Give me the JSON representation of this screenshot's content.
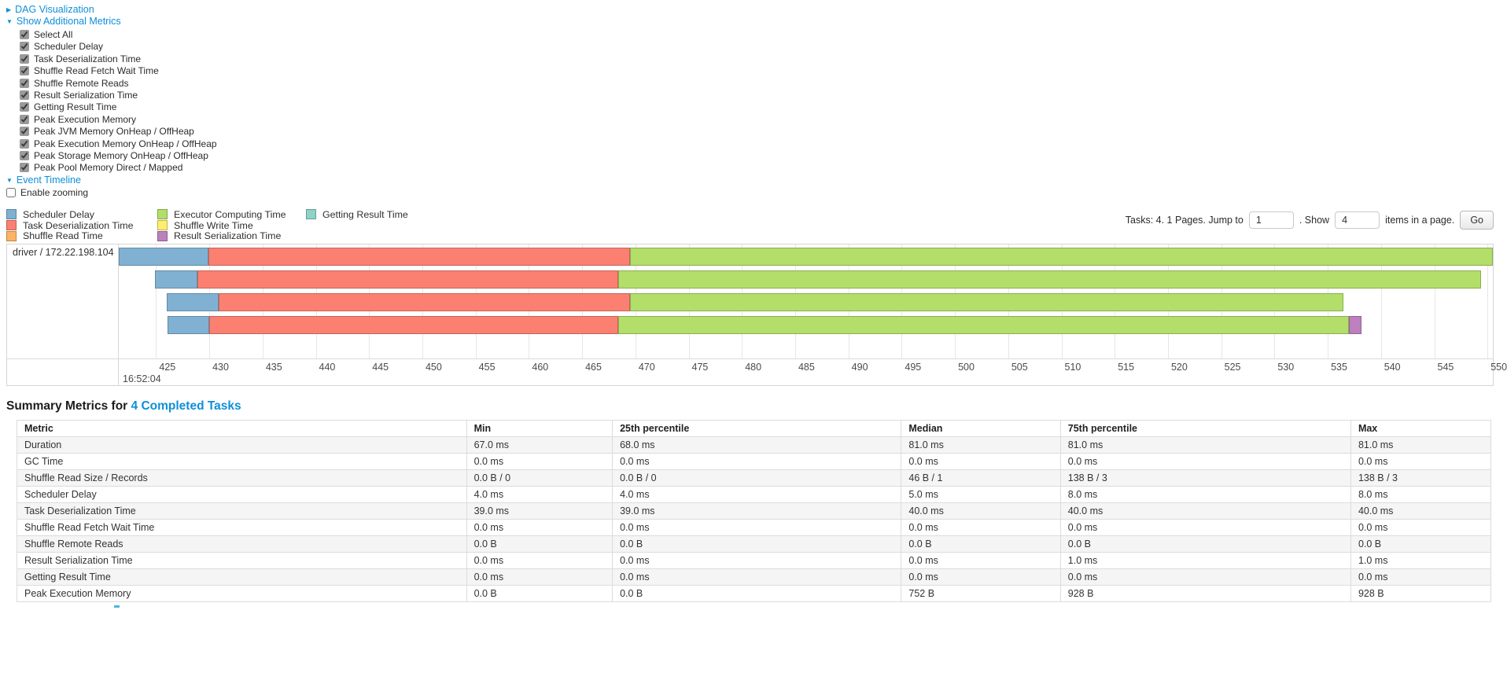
{
  "colors": {
    "link": "#0e8fd9",
    "scheduler_delay": "#80B1D3",
    "task_deserialization": "#FB8072",
    "shuffle_read": "#FDB462",
    "executor_computing": "#B3DE69",
    "shuffle_write": "#FFED6F",
    "result_serialization": "#BC80BD",
    "getting_result": "#8DD3C7"
  },
  "toggles": {
    "dag": "DAG Visualization",
    "additional_metrics": "Show Additional Metrics",
    "event_timeline": "Event Timeline",
    "enable_zooming": "Enable zooming",
    "enable_zooming_checked": false
  },
  "metric_checkboxes": [
    {
      "label": "Select All",
      "checked": true
    },
    {
      "label": "Scheduler Delay",
      "checked": true
    },
    {
      "label": "Task Deserialization Time",
      "checked": true
    },
    {
      "label": "Shuffle Read Fetch Wait Time",
      "checked": true
    },
    {
      "label": "Shuffle Remote Reads",
      "checked": true
    },
    {
      "label": "Result Serialization Time",
      "checked": true
    },
    {
      "label": "Getting Result Time",
      "checked": true
    },
    {
      "label": "Peak Execution Memory",
      "checked": true
    },
    {
      "label": "Peak JVM Memory OnHeap / OffHeap",
      "checked": true
    },
    {
      "label": "Peak Execution Memory OnHeap / OffHeap",
      "checked": true
    },
    {
      "label": "Peak Storage Memory OnHeap / OffHeap",
      "checked": true
    },
    {
      "label": "Peak Pool Memory Direct / Mapped",
      "checked": true
    }
  ],
  "pagination": {
    "tasks_text": "Tasks: 4. 1 Pages. Jump to",
    "jump_value": "1",
    "show_text": ". Show",
    "show_value": "4",
    "items_text": "items in a page.",
    "go": "Go"
  },
  "legend": {
    "columns": [
      [
        {
          "key": "scheduler_delay",
          "label": "Scheduler Delay"
        },
        {
          "key": "task_deserialization",
          "label": "Task Deserialization Time"
        },
        {
          "key": "shuffle_read",
          "label": "Shuffle Read Time"
        }
      ],
      [
        {
          "key": "executor_computing",
          "label": "Executor Computing Time"
        },
        {
          "key": "shuffle_write",
          "label": "Shuffle Write Time"
        },
        {
          "key": "result_serialization",
          "label": "Result Serialization Time"
        }
      ],
      [
        {
          "key": "getting_result",
          "label": "Getting Result Time"
        }
      ]
    ]
  },
  "chart_data": {
    "type": "timeline",
    "group_label": "driver / 172.22.198.104",
    "time_anchor": "16:52:04",
    "axis": {
      "min": 421.5,
      "max": 550.5,
      "tick_start": 425,
      "tick_end": 550,
      "tick_step": 5,
      "unit": "ms"
    },
    "tasks": [
      {
        "segments": [
          [
            "scheduler_delay",
            421.5,
            429.9
          ],
          [
            "task_deserialization",
            429.9,
            469.5
          ],
          [
            "executor_computing",
            469.5,
            550.5
          ]
        ]
      },
      {
        "segments": [
          [
            "scheduler_delay",
            424.9,
            428.9
          ],
          [
            "task_deserialization",
            428.9,
            468.4
          ],
          [
            "executor_computing",
            468.4,
            549.4
          ]
        ]
      },
      {
        "segments": [
          [
            "scheduler_delay",
            426.0,
            430.9
          ],
          [
            "task_deserialization",
            430.9,
            469.5
          ],
          [
            "executor_computing",
            469.5,
            536.5
          ]
        ]
      },
      {
        "segments": [
          [
            "scheduler_delay",
            426.1,
            430.0
          ],
          [
            "task_deserialization",
            430.0,
            468.4
          ],
          [
            "executor_computing",
            468.4,
            537.0
          ],
          [
            "result_serialization",
            537.0,
            538.2
          ]
        ]
      }
    ]
  },
  "summary": {
    "title_prefix": "Summary Metrics for",
    "title_link": "4 Completed Tasks",
    "headers": [
      "Metric",
      "Min",
      "25th percentile",
      "Median",
      "75th percentile",
      "Max"
    ],
    "rows": [
      {
        "metric": "Duration",
        "values": [
          "67.0 ms",
          "68.0 ms",
          "81.0 ms",
          "81.0 ms",
          "81.0 ms"
        ]
      },
      {
        "metric": "GC Time",
        "values": [
          "0.0 ms",
          "0.0 ms",
          "0.0 ms",
          "0.0 ms",
          "0.0 ms"
        ]
      },
      {
        "metric": "Shuffle Read Size / Records",
        "values": [
          "0.0 B / 0",
          "0.0 B / 0",
          "46 B / 1",
          "138 B / 3",
          "138 B / 3"
        ]
      },
      {
        "metric": "Scheduler Delay",
        "values": [
          "4.0 ms",
          "4.0 ms",
          "5.0 ms",
          "8.0 ms",
          "8.0 ms"
        ]
      },
      {
        "metric": "Task Deserialization Time",
        "values": [
          "39.0 ms",
          "39.0 ms",
          "40.0 ms",
          "40.0 ms",
          "40.0 ms"
        ]
      },
      {
        "metric": "Shuffle Read Fetch Wait Time",
        "values": [
          "0.0 ms",
          "0.0 ms",
          "0.0 ms",
          "0.0 ms",
          "0.0 ms"
        ]
      },
      {
        "metric": "Shuffle Remote Reads",
        "values": [
          "0.0 B",
          "0.0 B",
          "0.0 B",
          "0.0 B",
          "0.0 B"
        ]
      },
      {
        "metric": "Result Serialization Time",
        "values": [
          "0.0 ms",
          "0.0 ms",
          "0.0 ms",
          "1.0 ms",
          "1.0 ms"
        ]
      },
      {
        "metric": "Getting Result Time",
        "values": [
          "0.0 ms",
          "0.0 ms",
          "0.0 ms",
          "0.0 ms",
          "0.0 ms"
        ]
      },
      {
        "metric": "Peak Execution Memory",
        "values": [
          "0.0 B",
          "0.0 B",
          "752 B",
          "928 B",
          "928 B"
        ]
      }
    ]
  }
}
